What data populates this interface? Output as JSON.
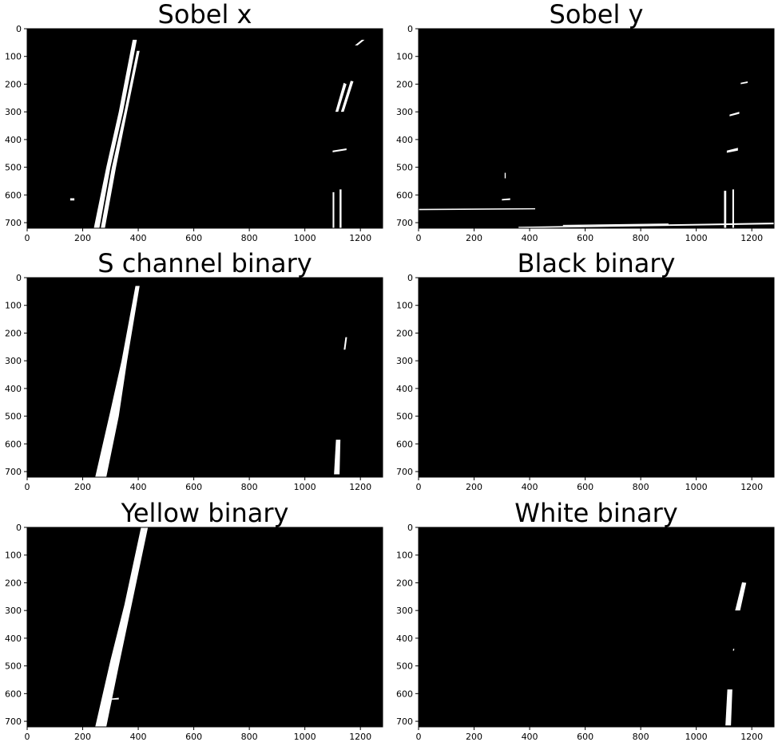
{
  "figure": {
    "x_ticks": [
      "0",
      "200",
      "400",
      "600",
      "800",
      "1000",
      "1200"
    ],
    "y_ticks": [
      "0",
      "100",
      "200",
      "300",
      "400",
      "500",
      "600",
      "700"
    ],
    "panels": [
      {
        "id": "sobel-x",
        "title": "Sobel x"
      },
      {
        "id": "sobel-y",
        "title": "Sobel y"
      },
      {
        "id": "s-channel",
        "title": "S channel binary"
      },
      {
        "id": "black",
        "title": "Black binary"
      },
      {
        "id": "yellow",
        "title": "Yellow binary"
      },
      {
        "id": "white",
        "title": "White binary"
      }
    ]
  }
}
